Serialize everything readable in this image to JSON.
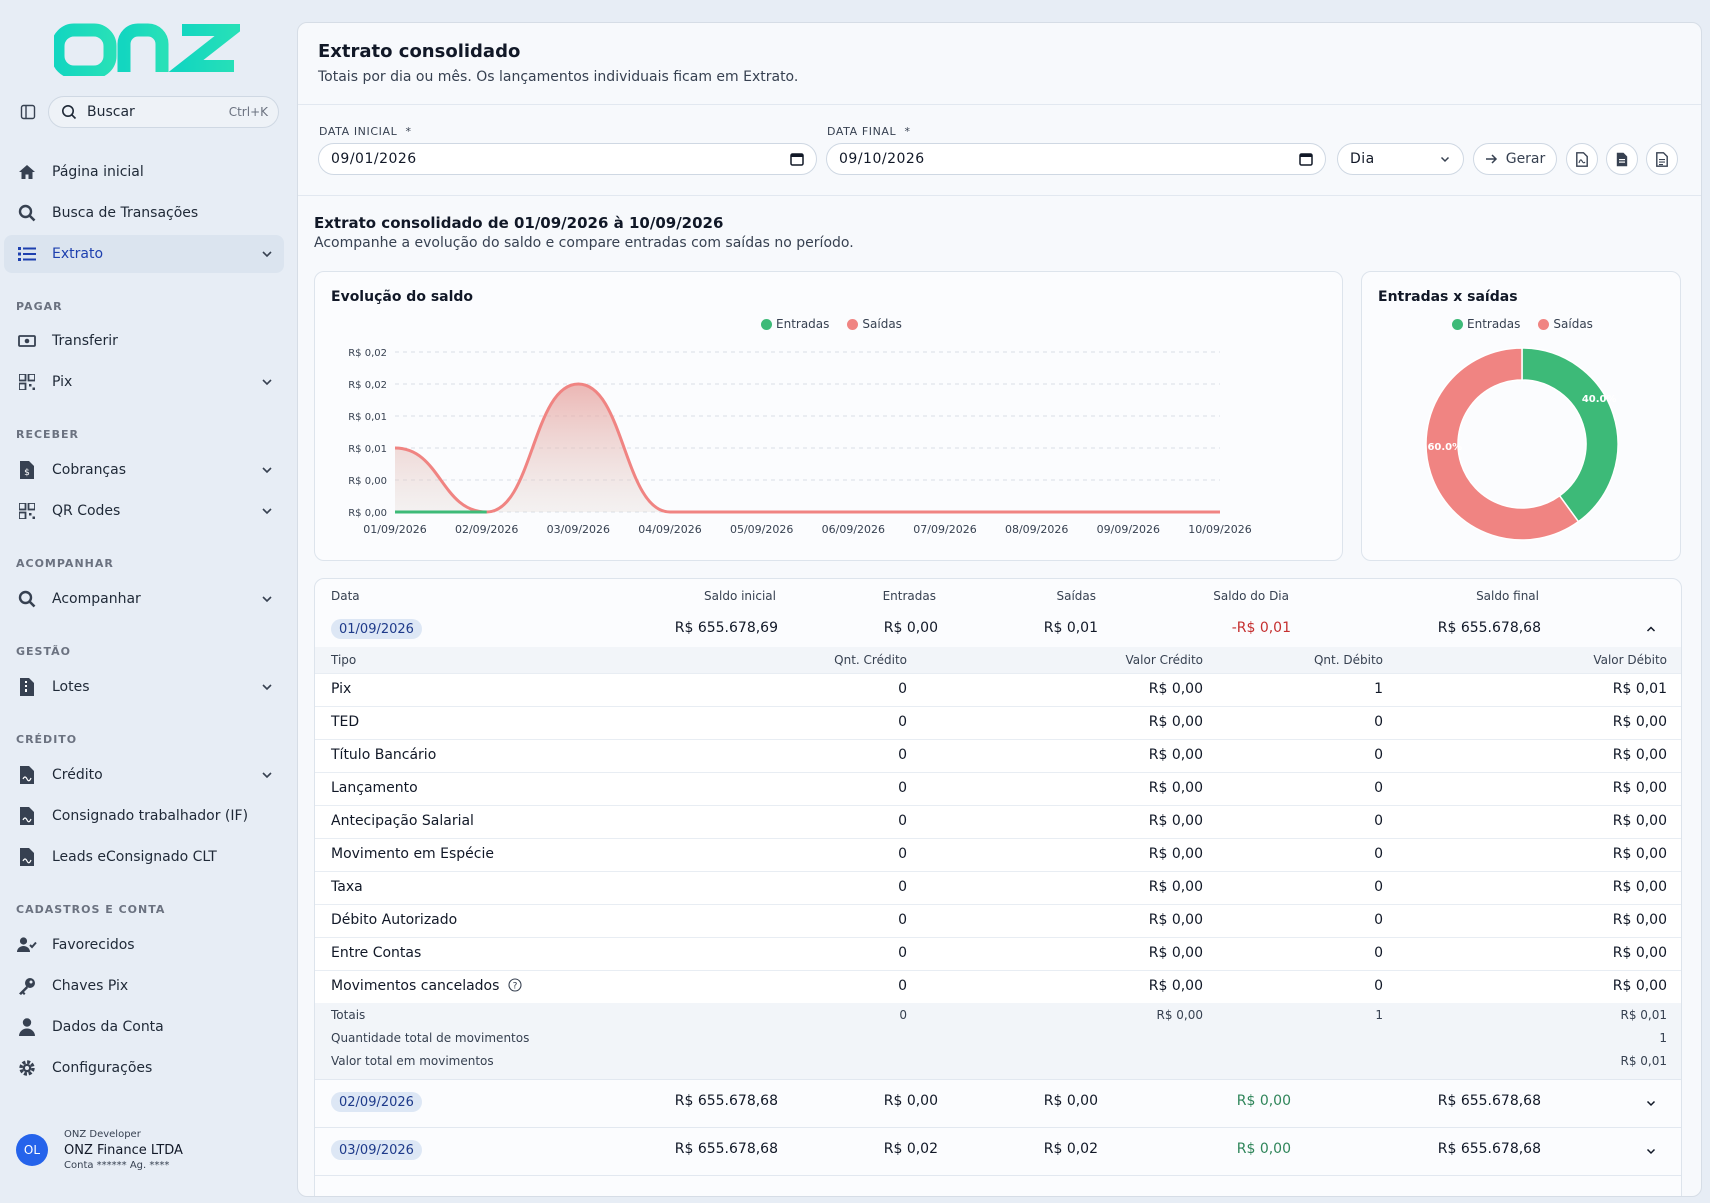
{
  "app": {
    "logo": "onz"
  },
  "search": {
    "label": "Buscar",
    "shortcut": "Ctrl+K"
  },
  "nav": {
    "home": "Página inicial",
    "busca": "Busca de Transações",
    "extrato": "Extrato",
    "sec_pagar": "PAGAR",
    "transferir": "Transferir",
    "pix": "Pix",
    "sec_receber": "RECEBER",
    "cobrancas": "Cobranças",
    "qrcodes": "QR Codes",
    "sec_acomp": "ACOMPANHAR",
    "acompanhar": "Acompanhar",
    "sec_gestao": "GESTÃO",
    "lotes": "Lotes",
    "sec_credito": "CRÉDITO",
    "credito": "Crédito",
    "consignado": "Consignado trabalhador (IF)",
    "leads": "Leads eConsignado CLT",
    "sec_cad": "CADASTROS E CONTA",
    "favorecidos": "Favorecidos",
    "chaves": "Chaves Pix",
    "dados": "Dados da Conta",
    "config": "Configurações"
  },
  "user": {
    "initials": "OL",
    "role": "ONZ Developer",
    "company": "ONZ Finance LTDA",
    "account": "Conta ****** Ag. ****"
  },
  "page": {
    "title": "Extrato consolidado",
    "subtitle": "Totais por dia ou mês. Os lançamentos individuais ficam em Extrato."
  },
  "filters": {
    "start_label": "DATA INICIAL",
    "start_value": "09/01/2026",
    "end_label": "DATA FINAL",
    "end_value": "09/10/2026",
    "required": "*",
    "period": "Dia",
    "generate": "Gerar"
  },
  "report": {
    "title": "Extrato consolidado de 01/09/2026 à 10/09/2026",
    "subtitle": "Acompanhe a evolução do saldo e compare entradas com saídas no período."
  },
  "colors": {
    "entradas": "#3dba78",
    "saidas": "#f08482",
    "accent": "#1e40af",
    "negative": "#c53030",
    "positive": "#2f855a"
  },
  "chart_data": [
    {
      "type": "area",
      "title": "Evolução do saldo",
      "categories": [
        "01/09/2026",
        "02/09/2026",
        "03/09/2026",
        "04/09/2026",
        "05/09/2026",
        "06/09/2026",
        "07/09/2026",
        "08/09/2026",
        "09/09/2026",
        "10/09/2026"
      ],
      "y_tick_labels": [
        "R$ 0,00",
        "R$ 0,00",
        "R$ 0,01",
        "R$ 0,01",
        "R$ 0,02",
        "R$ 0,02"
      ],
      "ylim": [
        0,
        0.025
      ],
      "legend": [
        "Entradas",
        "Saídas"
      ],
      "legend_position": "top-center",
      "grid": true,
      "series": [
        {
          "name": "Entradas",
          "values": [
            0,
            0,
            0.02,
            0,
            0,
            0,
            0,
            0,
            0,
            0
          ]
        },
        {
          "name": "Saídas",
          "values": [
            0.01,
            0,
            0.02,
            0,
            0,
            0,
            0,
            0,
            0,
            0
          ]
        }
      ]
    },
    {
      "type": "pie",
      "title": "Entradas x saídas",
      "donut": true,
      "legend": [
        "Entradas",
        "Saídas"
      ],
      "legend_position": "top-center",
      "slices": [
        {
          "name": "Entradas",
          "value": 40.0,
          "label": "40.0%"
        },
        {
          "name": "Saídas",
          "value": 60.0,
          "label": "60.0%"
        }
      ]
    }
  ],
  "table": {
    "headers": [
      "Data",
      "Saldo inicial",
      "Entradas",
      "Saídas",
      "Saldo do Dia",
      "Saldo final"
    ],
    "sub_headers": [
      "Tipo",
      "Qnt. Crédito",
      "Valor Crédito",
      "Qnt. Débito",
      "Valor Débito"
    ],
    "days": [
      {
        "date": "01/09/2026",
        "saldo_inicial": "R$ 655.678,69",
        "entradas": "R$ 0,00",
        "saidas": "R$ 0,01",
        "saldo_dia": "-R$ 0,01",
        "saldo_final": "R$ 655.678,68",
        "expanded": true
      },
      {
        "date": "02/09/2026",
        "saldo_inicial": "R$ 655.678,68",
        "entradas": "R$ 0,00",
        "saidas": "R$ 0,00",
        "saldo_dia": "R$ 0,00",
        "saldo_final": "R$ 655.678,68",
        "expanded": false
      },
      {
        "date": "03/09/2026",
        "saldo_inicial": "R$ 655.678,68",
        "entradas": "R$ 0,02",
        "saidas": "R$ 0,02",
        "saldo_dia": "R$ 0,00",
        "saldo_final": "R$ 655.678,68",
        "expanded": false
      }
    ],
    "detail_rows": [
      {
        "tipo": "Pix",
        "qc": "0",
        "vc": "R$ 0,00",
        "qd": "1",
        "vd": "R$ 0,01"
      },
      {
        "tipo": "TED",
        "qc": "0",
        "vc": "R$ 0,00",
        "qd": "0",
        "vd": "R$ 0,00"
      },
      {
        "tipo": "Título Bancário",
        "qc": "0",
        "vc": "R$ 0,00",
        "qd": "0",
        "vd": "R$ 0,00"
      },
      {
        "tipo": "Lançamento",
        "qc": "0",
        "vc": "R$ 0,00",
        "qd": "0",
        "vd": "R$ 0,00"
      },
      {
        "tipo": "Antecipação Salarial",
        "qc": "0",
        "vc": "R$ 0,00",
        "qd": "0",
        "vd": "R$ 0,00"
      },
      {
        "tipo": "Movimento em Espécie",
        "qc": "0",
        "vc": "R$ 0,00",
        "qd": "0",
        "vd": "R$ 0,00"
      },
      {
        "tipo": "Taxa",
        "qc": "0",
        "vc": "R$ 0,00",
        "qd": "0",
        "vd": "R$ 0,00"
      },
      {
        "tipo": "Débito Autorizado",
        "qc": "0",
        "vc": "R$ 0,00",
        "qd": "0",
        "vd": "R$ 0,00"
      },
      {
        "tipo": "Entre Contas",
        "qc": "0",
        "vc": "R$ 0,00",
        "qd": "0",
        "vd": "R$ 0,00"
      },
      {
        "tipo": "Movimentos cancelados",
        "qc": "0",
        "vc": "R$ 0,00",
        "qd": "0",
        "vd": "R$ 0,00"
      }
    ],
    "totals": {
      "label": "Totais",
      "qc": "0",
      "vc": "R$ 0,00",
      "qd": "1",
      "vd": "R$ 0,01"
    },
    "qty_total": {
      "label": "Quantidade total de movimentos",
      "value": "1"
    },
    "val_total": {
      "label": "Valor total em movimentos",
      "value": "R$ 0,01"
    }
  }
}
